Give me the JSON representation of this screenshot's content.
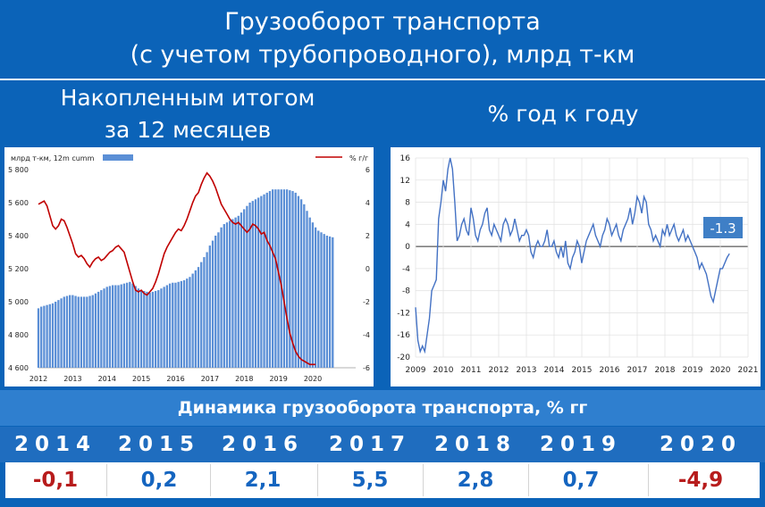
{
  "header": {
    "title_line1": "Грузооборот транспорта",
    "title_line2": "(с учетом трубопроводного), млрд т-км"
  },
  "left_panel": {
    "heading_line1": "Накопленным итогом",
    "heading_line2": "за 12 месяцев"
  },
  "right_panel": {
    "heading": "% год к году"
  },
  "chart_data": [
    {
      "type": "bar",
      "legend_left": "млрд т-км, 12m cumm",
      "legend_right": "% г/г",
      "legend_placement": "top",
      "x_ticks": [
        "2012",
        "2013",
        "2014",
        "2015",
        "2016",
        "2017",
        "2018",
        "2019",
        "2020"
      ],
      "y_left_ticks": [
        "4 600",
        "4 800",
        "5 000",
        "5 200",
        "5 400",
        "5 600",
        "5 800"
      ],
      "y_right_ticks": [
        "-6",
        "-4",
        "-2",
        "0",
        "2",
        "4",
        "6"
      ],
      "ylim_left": [
        4600,
        5800
      ],
      "ylim_right": [
        -6,
        6
      ],
      "series": [
        {
          "name": "млрд т-км, 12m cumm",
          "color": "#5b8fd6",
          "x_start": 2012.0,
          "x_step": 0.0833,
          "values": [
            4960,
            4970,
            4975,
            4980,
            4985,
            4990,
            5000,
            5010,
            5020,
            5030,
            5035,
            5040,
            5040,
            5035,
            5030,
            5030,
            5030,
            5030,
            5035,
            5040,
            5050,
            5060,
            5070,
            5080,
            5090,
            5095,
            5100,
            5100,
            5100,
            5105,
            5110,
            5115,
            5120,
            5110,
            5095,
            5080,
            5070,
            5065,
            5060,
            5055,
            5060,
            5065,
            5070,
            5080,
            5090,
            5100,
            5110,
            5115,
            5115,
            5120,
            5125,
            5130,
            5140,
            5150,
            5170,
            5190,
            5210,
            5240,
            5270,
            5300,
            5340,
            5370,
            5400,
            5420,
            5450,
            5470,
            5480,
            5490,
            5500,
            5510,
            5520,
            5540,
            5560,
            5580,
            5600,
            5610,
            5620,
            5630,
            5640,
            5650,
            5660,
            5670,
            5680,
            5680,
            5680,
            5680,
            5680,
            5680,
            5675,
            5670,
            5660,
            5640,
            5620,
            5590,
            5550,
            5510,
            5480,
            5450,
            5430,
            5420,
            5410,
            5400,
            5395,
            5390
          ]
        },
        {
          "name": "% г/г",
          "color": "#c00000",
          "axis": "right",
          "x_start": 2012.0,
          "x_step": 0.0833,
          "values": [
            3.9,
            4.0,
            4.1,
            3.8,
            3.2,
            2.6,
            2.4,
            2.6,
            3.0,
            2.9,
            2.5,
            2.0,
            1.5,
            0.9,
            0.7,
            0.8,
            0.6,
            0.3,
            0.1,
            0.4,
            0.6,
            0.7,
            0.5,
            0.6,
            0.8,
            1.0,
            1.1,
            1.3,
            1.4,
            1.2,
            1.0,
            0.4,
            -0.2,
            -0.8,
            -1.3,
            -1.4,
            -1.3,
            -1.5,
            -1.6,
            -1.4,
            -1.2,
            -0.8,
            -0.3,
            0.3,
            0.9,
            1.3,
            1.6,
            1.9,
            2.2,
            2.4,
            2.3,
            2.6,
            3.0,
            3.5,
            4.0,
            4.4,
            4.6,
            5.1,
            5.5,
            5.8,
            5.6,
            5.3,
            4.9,
            4.4,
            3.9,
            3.6,
            3.3,
            3.0,
            2.8,
            2.7,
            2.8,
            2.6,
            2.4,
            2.2,
            2.4,
            2.7,
            2.6,
            2.4,
            2.1,
            2.2,
            1.7,
            1.4,
            1.0,
            0.6,
            -0.2,
            -1.0,
            -2.0,
            -3.0,
            -3.9,
            -4.5,
            -5.0,
            -5.3,
            -5.5,
            -5.6,
            -5.7,
            -5.8,
            -5.8,
            -5.8
          ]
        }
      ]
    },
    {
      "type": "line",
      "x_ticks": [
        "2009",
        "2010",
        "2011",
        "2012",
        "2013",
        "2014",
        "2015",
        "2016",
        "2017",
        "2018",
        "2019",
        "2020",
        "2021"
      ],
      "y_ticks": [
        "-20",
        "-16",
        "-12",
        "-8",
        "-4",
        "0",
        "4",
        "8",
        "12",
        "16"
      ],
      "ylim": [
        -20,
        16
      ],
      "grid": true,
      "last_value_label": "-1.3",
      "series": [
        {
          "name": "% год к году",
          "color": "#4472c4",
          "x_start": 2009.0,
          "x_step": 0.0833,
          "values": [
            -11,
            -17,
            -19,
            -18,
            -19,
            -16,
            -13,
            -8,
            -7,
            -6,
            5,
            8,
            12,
            10,
            14,
            16,
            14,
            8,
            1,
            2,
            4,
            5,
            3,
            2,
            7,
            5,
            2,
            1,
            3,
            4,
            6,
            7,
            3,
            2,
            4,
            3,
            2,
            1,
            4,
            5,
            4,
            2,
            3,
            5,
            3,
            1,
            2,
            2,
            3,
            2,
            -1,
            -2,
            0,
            1,
            0,
            0,
            1,
            3,
            0,
            0,
            1,
            -1,
            -2,
            0,
            -2,
            1,
            -3,
            -4,
            -2,
            -1,
            1,
            0,
            -3,
            -1,
            1,
            2,
            3,
            4,
            2,
            1,
            0,
            2,
            3,
            5,
            4,
            2,
            3,
            4,
            2,
            1,
            3,
            4,
            5,
            7,
            4,
            6,
            9,
            8,
            6,
            9,
            8,
            4,
            3,
            1,
            2,
            1,
            0,
            3,
            2,
            4,
            2,
            3,
            4,
            2,
            1,
            2,
            3,
            1,
            2,
            1,
            0,
            -1,
            -2,
            -4,
            -3,
            -4,
            -5,
            -7,
            -9,
            -10,
            -8,
            -6,
            -4,
            -4,
            -3,
            -2,
            -1.3
          ]
        }
      ]
    }
  ],
  "table": {
    "title": "Динамика грузооборота транспорта, % гг",
    "years": [
      "2014",
      "2015",
      "2016",
      "2017",
      "2018",
      "2019",
      "2020"
    ],
    "values": [
      "-0,1",
      "0,2",
      "2,1",
      "5,5",
      "2,8",
      "0,7",
      "-4,9"
    ],
    "value_colors": [
      "#b71c1c",
      "#1565c0",
      "#1565c0",
      "#1565c0",
      "#1565c0",
      "#1565c0",
      "#b71c1c"
    ]
  }
}
